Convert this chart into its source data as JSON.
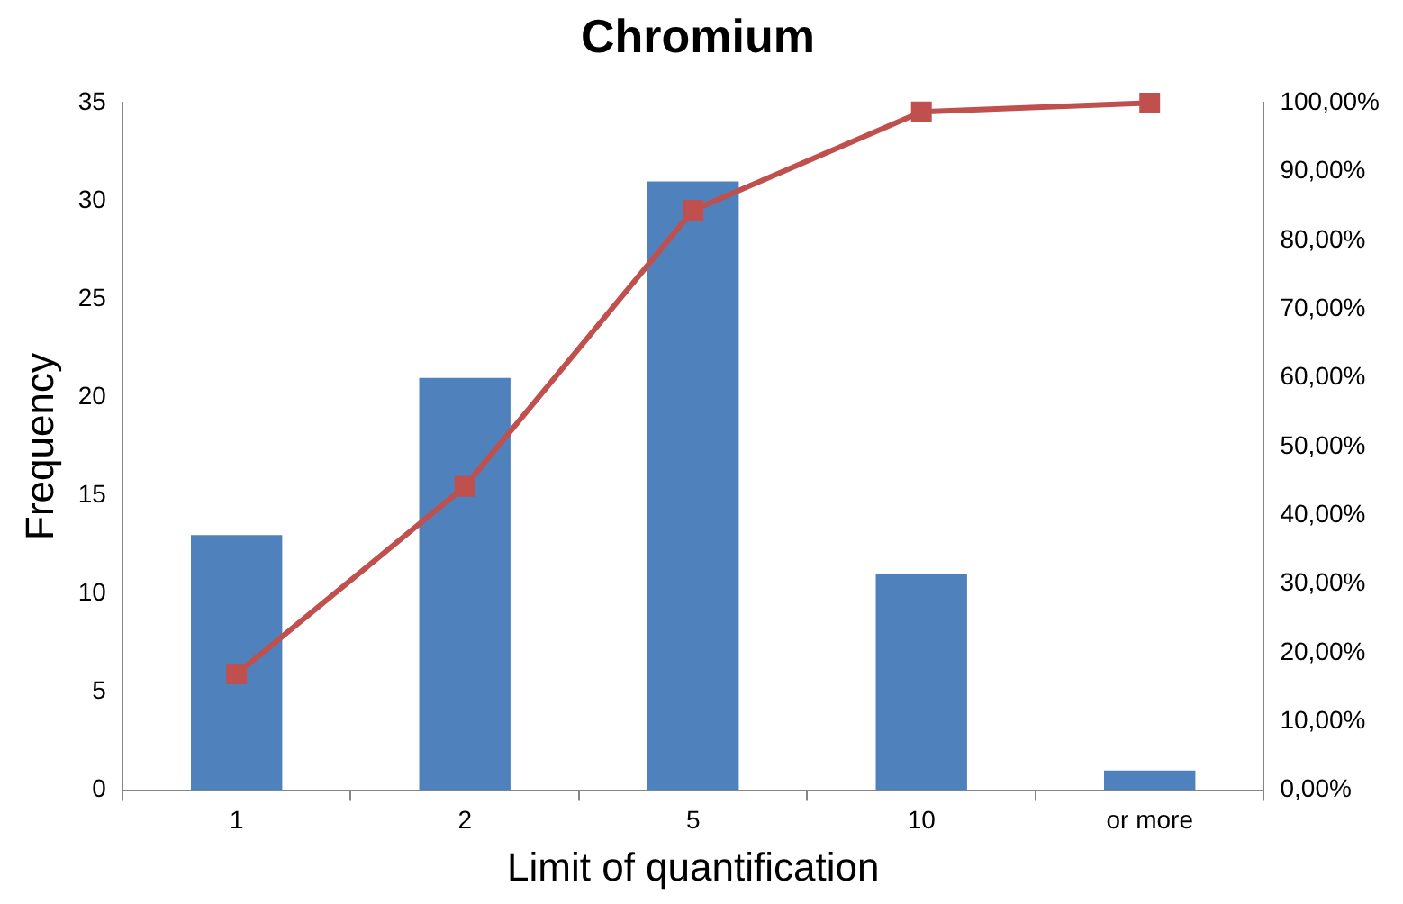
{
  "chart_data": {
    "type": "bar",
    "title": "Chromium",
    "xlabel": "Limit of quantification",
    "ylabel": "Frequency",
    "categories": [
      "1",
      "2",
      "5",
      "10",
      "or more"
    ],
    "series": [
      {
        "color": "#4f81bd",
        "values": [
          13,
          21,
          31,
          11,
          1
        ]
      },
      {
        "type": "line",
        "axis": "y2",
        "color": "#c0504d",
        "marker": "square",
        "values": [
          16.9,
          44.2,
          84.4,
          98.7,
          100
        ]
      }
    ],
    "ylim": [
      0,
      35
    ],
    "yticks": [
      0,
      5,
      10,
      15,
      20,
      25,
      30,
      35
    ],
    "y2lim": [
      0,
      100
    ],
    "y2ticks": [
      {
        "value": 0,
        "label": "0,00%"
      },
      {
        "value": 10,
        "label": "10,00%"
      },
      {
        "value": 20,
        "label": "20,00%"
      },
      {
        "value": 30,
        "label": "30,00%"
      },
      {
        "value": 40,
        "label": "40,00%"
      },
      {
        "value": 50,
        "label": "50,00%"
      },
      {
        "value": 60,
        "label": "60,00%"
      },
      {
        "value": 70,
        "label": "70,00%"
      },
      {
        "value": 80,
        "label": "80,00%"
      },
      {
        "value": 90,
        "label": "90,00%"
      },
      {
        "value": 100,
        "label": "100,00%"
      }
    ],
    "grid": false,
    "legend": false
  }
}
